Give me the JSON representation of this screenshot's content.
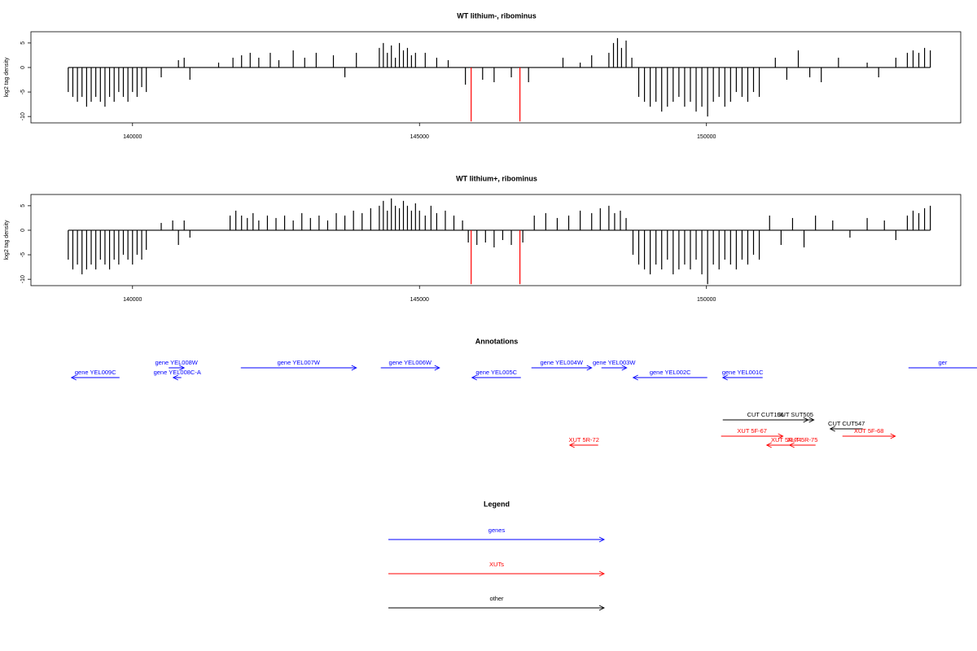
{
  "chart_data": [
    {
      "type": "bar",
      "title": "WT lithium-, ribominus",
      "y_label": "log2 tag density",
      "xlim": [
        138230,
        154430
      ],
      "ylim": [
        -11.3,
        7.3
      ],
      "xticks": [
        140000,
        145000,
        150000
      ],
      "yticks": [
        5,
        0,
        -5,
        -10
      ],
      "series": [
        {
          "color": "#000000",
          "x": [
            138880,
            138960,
            139040,
            139120,
            139200,
            139280,
            139360,
            139440,
            139520,
            139600,
            139680,
            139760,
            139840,
            139920,
            140000,
            140080,
            140160,
            140240,
            140500,
            140800,
            140900,
            141000,
            141500,
            141750,
            141900,
            142050,
            142200,
            142400,
            142550,
            142800,
            143000,
            143200,
            143500,
            143700,
            143900,
            144300,
            144370,
            144440,
            144510,
            144580,
            144650,
            144720,
            144790,
            144860,
            144930,
            145100,
            145300,
            145500,
            145800,
            146100,
            146300,
            146600,
            146900,
            147500,
            147800,
            148000,
            148300,
            148380,
            148450,
            148520,
            148600,
            148700,
            148820,
            148920,
            149020,
            149120,
            149220,
            149320,
            149420,
            149520,
            149620,
            149720,
            149820,
            149920,
            150020,
            150120,
            150220,
            150320,
            150420,
            150520,
            150620,
            150720,
            150820,
            150920,
            151200,
            151400,
            151600,
            151800,
            152000,
            152300,
            152800,
            153000,
            153300,
            153500,
            153600,
            153700,
            153800,
            153900
          ],
          "values": [
            -5,
            -6,
            -7,
            -6,
            -8,
            -7,
            -6,
            -7,
            -8,
            -6,
            -7,
            -5,
            -6,
            -7,
            -5,
            -6,
            -4,
            -5,
            -2,
            1.5,
            2,
            -2.5,
            1,
            2,
            2.5,
            3,
            2,
            3,
            1.5,
            3.5,
            2,
            3,
            2.5,
            -2,
            3,
            4,
            5,
            3,
            4.5,
            2,
            5,
            3.5,
            4,
            2.5,
            3,
            3,
            2,
            1.5,
            -3.5,
            -2.5,
            -3,
            -2,
            -3,
            2,
            1,
            2.5,
            3,
            5,
            6,
            4,
            5.5,
            2,
            -6,
            -7,
            -8,
            -7,
            -9,
            -8,
            -7,
            -6,
            -8,
            -7,
            -9,
            -8,
            -10,
            -7,
            -6,
            -8,
            -7,
            -5,
            -6,
            -7,
            -5,
            -6,
            2,
            -2.5,
            3.5,
            -2,
            -3,
            2,
            1,
            -2,
            2,
            3,
            3.5,
            3,
            4,
            3.5
          ]
        },
        {
          "color": "#ff0000",
          "x": [
            145900,
            146750
          ],
          "values": [
            -11,
            -11
          ]
        }
      ]
    },
    {
      "type": "bar",
      "title": "WT lithium+, ribominus",
      "y_label": "log2 tag density",
      "xlim": [
        138230,
        154430
      ],
      "ylim": [
        -11.3,
        7.3
      ],
      "xticks": [
        140000,
        145000,
        150000
      ],
      "yticks": [
        5,
        0,
        -5,
        -10
      ],
      "series": [
        {
          "color": "#000000",
          "x": [
            138880,
            138960,
            139040,
            139120,
            139200,
            139280,
            139360,
            139440,
            139520,
            139600,
            139680,
            139760,
            139840,
            139920,
            140000,
            140080,
            140160,
            140240,
            140500,
            140700,
            140800,
            140900,
            141000,
            141700,
            141800,
            141900,
            142000,
            142100,
            142200,
            142350,
            142500,
            142650,
            142800,
            142950,
            143100,
            143250,
            143400,
            143550,
            143700,
            143850,
            144000,
            144150,
            144300,
            144370,
            144440,
            144510,
            144580,
            144650,
            144720,
            144790,
            144860,
            144930,
            145000,
            145100,
            145200,
            145300,
            145450,
            145600,
            145750,
            145850,
            146000,
            146150,
            146300,
            146450,
            146600,
            146800,
            147000,
            147200,
            147400,
            147600,
            147800,
            148000,
            148150,
            148300,
            148400,
            148500,
            148600,
            148720,
            148820,
            148920,
            149020,
            149120,
            149220,
            149320,
            149420,
            149520,
            149620,
            149720,
            149820,
            149920,
            150020,
            150120,
            150220,
            150320,
            150420,
            150520,
            150620,
            150720,
            150820,
            150920,
            151100,
            151300,
            151500,
            151700,
            151900,
            152200,
            152500,
            152800,
            153100,
            153300,
            153500,
            153600,
            153700,
            153800,
            153900
          ],
          "values": [
            -6,
            -8,
            -7,
            -9,
            -8,
            -7,
            -8,
            -6,
            -7,
            -8,
            -6,
            -7,
            -5,
            -6,
            -7,
            -5,
            -6,
            -4,
            1.5,
            2,
            -3,
            2,
            -1.5,
            3,
            4,
            3,
            2.5,
            3.5,
            2,
            3,
            2.5,
            3,
            2,
            3.5,
            2.5,
            3,
            2,
            3.5,
            3,
            4,
            3.5,
            4.5,
            5,
            6,
            4,
            6.5,
            5,
            4.5,
            6,
            5,
            4,
            5.5,
            4,
            3,
            5,
            3.5,
            4,
            3,
            2,
            -2.5,
            -3,
            -2.5,
            -3.5,
            -2,
            -3,
            -2.5,
            3,
            3.5,
            2.5,
            3,
            4,
            3.5,
            4.5,
            5,
            3.5,
            4,
            2.5,
            -5,
            -7,
            -8,
            -9,
            -7,
            -8,
            -6,
            -9,
            -8,
            -7,
            -8,
            -6,
            -9,
            -11,
            -7,
            -8,
            -6,
            -7,
            -8,
            -6,
            -7,
            -5,
            -6,
            3,
            -3,
            2.5,
            -3.5,
            3,
            2,
            -1.5,
            2.5,
            2,
            -2,
            3,
            4,
            3.5,
            4.5,
            5
          ]
        },
        {
          "color": "#ff0000",
          "x": [
            145900,
            146750
          ],
          "values": [
            -11,
            -11
          ]
        }
      ]
    }
  ],
  "annotations": {
    "title": "Annotations",
    "features": [
      {
        "label": "gene YEL009C",
        "start": 138936,
        "end": 139773,
        "strand": "-",
        "kind": "gene",
        "color": "#0000ff"
      },
      {
        "label": "gene YEL008W",
        "start": 140630,
        "end": 140900,
        "strand": "+",
        "kind": "gene",
        "color": "#0000ff"
      },
      {
        "label": "gene YEL008C-A",
        "start": 140709,
        "end": 140850,
        "strand": "-",
        "kind": "gene",
        "color": "#0000ff"
      },
      {
        "label": "gene YEL007W",
        "start": 141887,
        "end": 143901,
        "strand": "+",
        "kind": "gene",
        "color": "#0000ff"
      },
      {
        "label": "gene YEL006W",
        "start": 144326,
        "end": 145348,
        "strand": "+",
        "kind": "gene",
        "color": "#0000ff"
      },
      {
        "label": "gene YEL005C",
        "start": 145915,
        "end": 146766,
        "strand": "-",
        "kind": "gene",
        "color": "#0000ff"
      },
      {
        "label": "gene YEL004W",
        "start": 146950,
        "end": 148000,
        "strand": "+",
        "kind": "gene",
        "color": "#0000ff"
      },
      {
        "label": "gene YEL003W",
        "start": 148170,
        "end": 148610,
        "strand": "+",
        "kind": "gene",
        "color": "#0000ff"
      },
      {
        "label": "gene YEL002C",
        "start": 148723,
        "end": 150014,
        "strand": "-",
        "kind": "gene",
        "color": "#0000ff"
      },
      {
        "label": "gene YEL001C",
        "start": 150284,
        "end": 150979,
        "strand": "-",
        "kind": "gene",
        "color": "#0000ff"
      },
      {
        "label": "ger",
        "start": 153520,
        "end": 155000,
        "strand": "+",
        "kind": "gene",
        "color": "#0000ff"
      },
      {
        "label": "SUT SUT505",
        "start": 151220,
        "end": 151872,
        "strand": "+",
        "kind": "other",
        "color": "#000000"
      },
      {
        "label": "CUT CUT106",
        "start": 150284,
        "end": 151773,
        "strand": "+",
        "kind": "other",
        "color": "#000000"
      },
      {
        "label": "CUT CUT547",
        "start": 152156,
        "end": 152723,
        "strand": "-",
        "kind": "other",
        "color": "#000000"
      },
      {
        "label": "XUT 5R-72",
        "start": 147617,
        "end": 148113,
        "strand": "-",
        "kind": "xut",
        "color": "#ff0000"
      },
      {
        "label": "XUT 5F-67",
        "start": 150255,
        "end": 151333,
        "strand": "+",
        "kind": "xut",
        "color": "#ff0000"
      },
      {
        "label": "XUT 5R-74",
        "start": 151050,
        "end": 151730,
        "strand": "-",
        "kind": "xut",
        "color": "#ff0000"
      },
      {
        "label": "XUT 5R-75",
        "start": 151447,
        "end": 151901,
        "strand": "-",
        "kind": "xut",
        "color": "#ff0000"
      },
      {
        "label": "XUT 5F-68",
        "start": 152369,
        "end": 153291,
        "strand": "+",
        "kind": "xut",
        "color": "#ff0000"
      }
    ]
  },
  "legend": {
    "title": "Legend",
    "entries": [
      {
        "label": "genes",
        "color": "#0000ff"
      },
      {
        "label": "XUTs",
        "color": "#ff0000"
      },
      {
        "label": "other",
        "color": "#000000"
      }
    ]
  }
}
